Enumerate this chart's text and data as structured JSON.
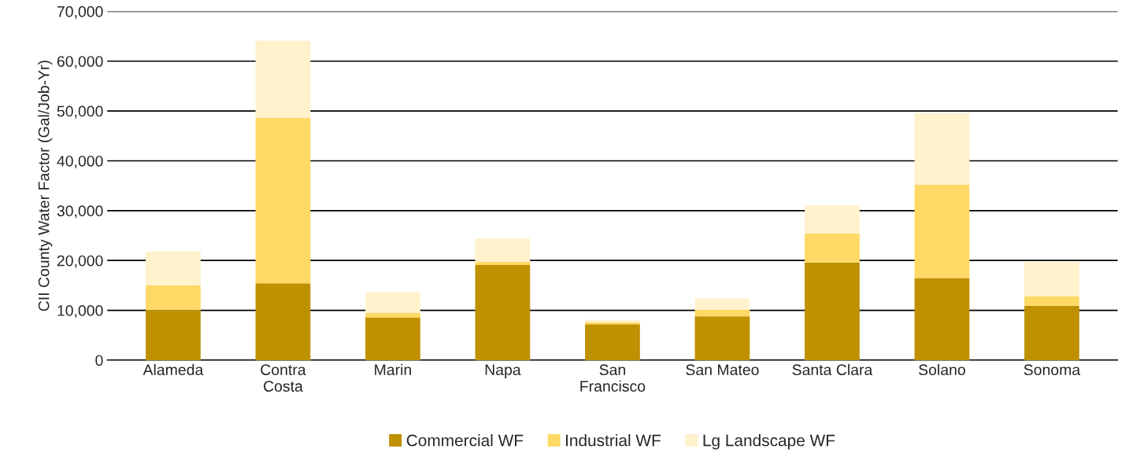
{
  "chart_data": {
    "type": "bar",
    "stacked": true,
    "ylabel": "CII County Water Factor (Gal/Job-Yr)",
    "categories": [
      "Alameda",
      "Contra\nCosta",
      "Marin",
      "Napa",
      "San\nFrancisco",
      "San Mateo",
      "Santa Clara",
      "Solano",
      "Sonoma"
    ],
    "series": [
      {
        "name": "Commercial WF",
        "color": "#bf9000",
        "values": [
          10000,
          15400,
          8500,
          19100,
          7200,
          8800,
          19600,
          16500,
          10900
        ]
      },
      {
        "name": "Industrial WF",
        "color": "#ffd966",
        "values": [
          5000,
          33200,
          1000,
          600,
          400,
          1300,
          5800,
          18700,
          1900
        ]
      },
      {
        "name": "Lg Landscape WF",
        "color": "#fff2cc",
        "values": [
          6800,
          15500,
          4100,
          4700,
          500,
          2300,
          5700,
          14400,
          6900
        ]
      }
    ],
    "ylim": [
      0,
      70000
    ],
    "yticks": [
      {
        "value": 0,
        "label": "0"
      },
      {
        "value": 10000,
        "label": "10,000"
      },
      {
        "value": 20000,
        "label": "20,000"
      },
      {
        "value": 30000,
        "label": "30,000"
      },
      {
        "value": 40000,
        "label": "40,000"
      },
      {
        "value": 50000,
        "label": "50,000"
      },
      {
        "value": 60000,
        "label": "60,000"
      },
      {
        "value": 70000,
        "label": "70,000"
      }
    ],
    "grid": "y",
    "legend": "bottom"
  }
}
